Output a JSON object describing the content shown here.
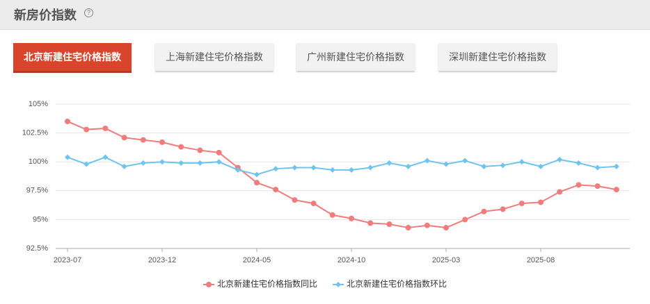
{
  "header": {
    "title": "新房价指数"
  },
  "tabs": [
    "北京新建住宅价格指数",
    "上海新建住宅价格指数",
    "广州新建住宅价格指数",
    "深圳新建住宅价格指数"
  ],
  "chart_data": {
    "type": "line",
    "categories": [
      "2023-07",
      null,
      null,
      null,
      null,
      "2023-12",
      null,
      null,
      null,
      null,
      "2024-05",
      null,
      null,
      null,
      null,
      "2024-10",
      null,
      null,
      null,
      null,
      "2025-03",
      null,
      null,
      null,
      null,
      "2025-08",
      null,
      null,
      null,
      null
    ],
    "series": [
      {
        "name": "北京新建住宅价格指数同比",
        "color": "#f07c7c",
        "values": [
          103.5,
          102.8,
          102.9,
          102.1,
          101.9,
          101.7,
          101.3,
          101.0,
          100.8,
          99.5,
          98.2,
          97.6,
          96.7,
          96.4,
          95.4,
          95.1,
          94.7,
          94.6,
          94.3,
          94.5,
          94.3,
          95.0,
          95.7,
          95.9,
          96.4,
          96.5,
          97.4,
          98.0,
          97.9,
          97.6
        ]
      },
      {
        "name": "北京新建住宅价格指数环比",
        "color": "#6ec3f0",
        "values": [
          100.4,
          99.8,
          100.4,
          99.6,
          99.9,
          100.0,
          99.9,
          99.9,
          100.0,
          99.3,
          98.9,
          99.4,
          99.5,
          99.5,
          99.3,
          99.3,
          99.5,
          99.9,
          99.6,
          100.1,
          99.8,
          100.1,
          99.6,
          99.7,
          100.0,
          99.6,
          100.2,
          99.9,
          99.5,
          99.6
        ]
      }
    ],
    "ylim": [
      92.5,
      105
    ],
    "yticks": [
      {
        "value": 92.5,
        "label": "92.5%"
      },
      {
        "value": 95,
        "label": "95%"
      },
      {
        "value": 97.5,
        "label": "97.5%"
      },
      {
        "value": 100,
        "label": "100%"
      },
      {
        "value": 102.5,
        "label": "102.5%"
      },
      {
        "value": 105,
        "label": "105%"
      }
    ],
    "grid": true
  }
}
